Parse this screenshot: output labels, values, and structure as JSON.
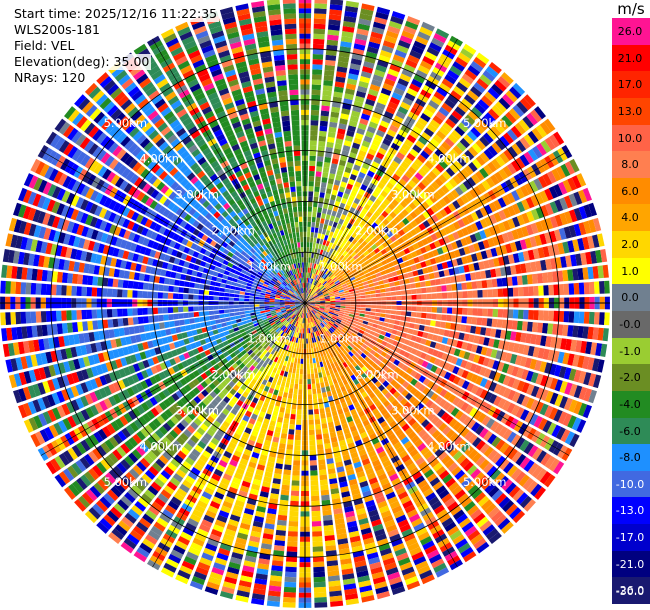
{
  "info": {
    "start_time": "Start time: 2025/12/16 11:22:35",
    "instrument": "WLS200s-181",
    "field": "Field: VEL",
    "elevation": "Elevation(deg): 35.00",
    "nrays": "NRays: 120"
  },
  "colorbar": {
    "unit": "m/s",
    "ticks": [
      "26.0",
      "21.0",
      "17.0",
      "13.0",
      "10.0",
      "8.0",
      "6.0",
      "4.0",
      "2.0",
      "1.0",
      "0.0",
      "-0.0",
      "-1.0",
      "-2.0",
      "-4.0",
      "-6.0",
      "-8.0",
      "-10.0",
      "-13.0",
      "-17.0",
      "-21.0",
      "-26.0",
      "-30.0"
    ],
    "colors": [
      "#ff1493",
      "#ff0000",
      "#ff2400",
      "#ff4500",
      "#ff6347",
      "#ff7f50",
      "#ff8c00",
      "#ffa500",
      "#ffd700",
      "#ffff00",
      "#708090",
      "#696969",
      "#9acd32",
      "#6b8e23",
      "#228b22",
      "#2e8b57",
      "#1e90ff",
      "#4169e1",
      "#0000ff",
      "#0000cd",
      "#000080",
      "#191970"
    ]
  },
  "chart_data": {
    "type": "ppi",
    "field": "VEL",
    "units": "m/s",
    "nrays": 120,
    "elevation_deg": 35.0,
    "range_rings_km": [
      1.0,
      2.0,
      3.0,
      4.0,
      5.0
    ],
    "range_labels": [
      "1.00km",
      "2.00km",
      "3.00km",
      "4.00km",
      "5.00km"
    ],
    "max_range_km": 6.0,
    "velocity_pattern_by_azimuth": [
      {
        "azimuth_deg": 0,
        "velocity": -2.0
      },
      {
        "azimuth_deg": 30,
        "velocity": 2.0
      },
      {
        "azimuth_deg": 60,
        "velocity": 6.0
      },
      {
        "azimuth_deg": 90,
        "velocity": 10.0
      },
      {
        "azimuth_deg": 120,
        "velocity": 9.0
      },
      {
        "azimuth_deg": 150,
        "velocity": 6.0
      },
      {
        "azimuth_deg": 180,
        "velocity": 4.0
      },
      {
        "azimuth_deg": 210,
        "velocity": 2.0
      },
      {
        "azimuth_deg": 240,
        "velocity": -4.0
      },
      {
        "azimuth_deg": 270,
        "velocity": -10.0
      },
      {
        "azimuth_deg": 300,
        "velocity": -10.0
      },
      {
        "azimuth_deg": 330,
        "velocity": -4.0
      }
    ]
  }
}
